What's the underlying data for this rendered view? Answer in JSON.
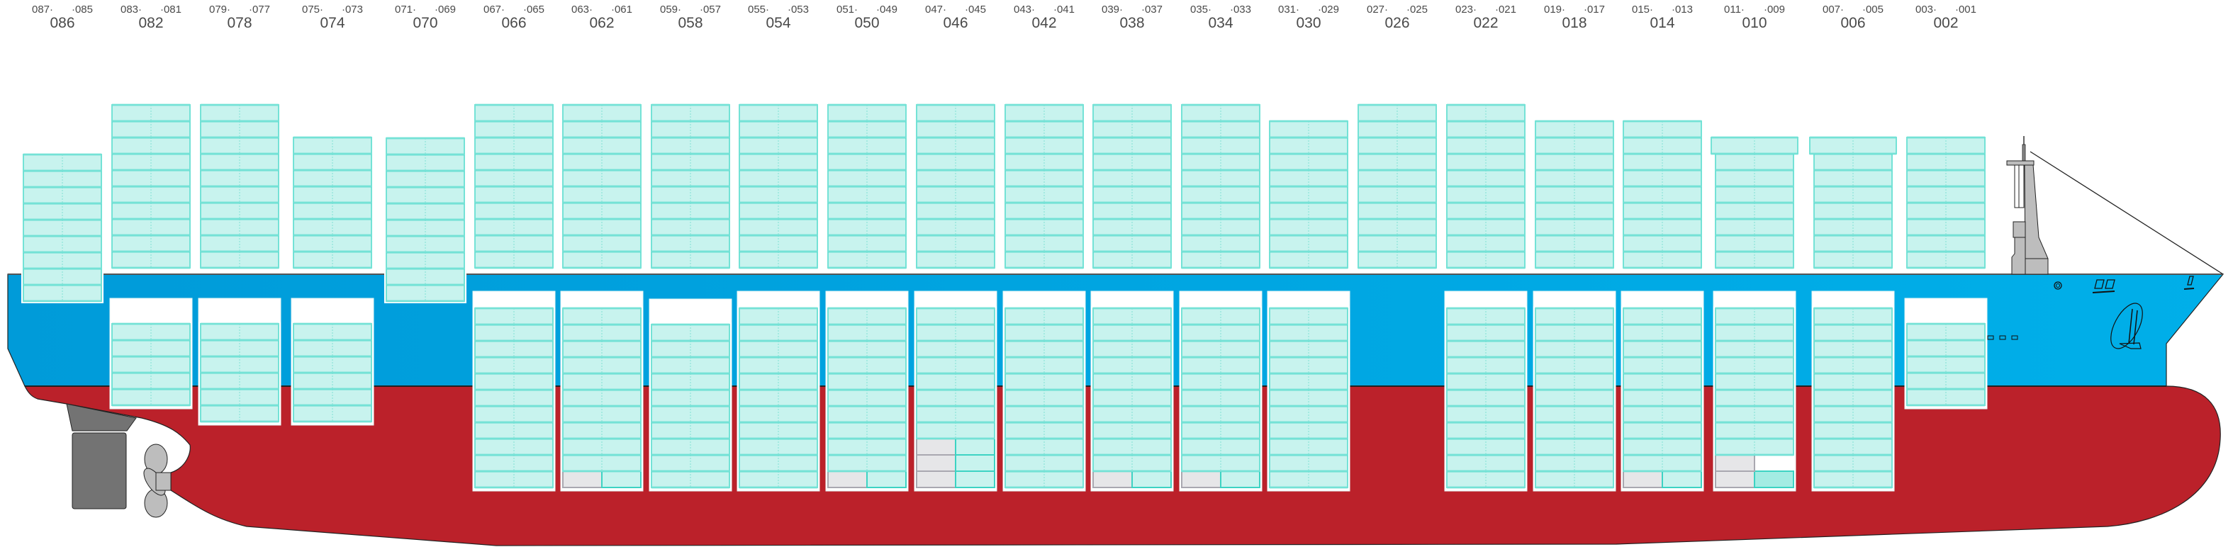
{
  "colors": {
    "container_fill": "#c8f3ee",
    "container_line": "#3dd3c3",
    "container_border": "#74e2d6",
    "empty_slot_fill": "#e6e6e8",
    "empty_slot_line": "#a9a8b0",
    "highlight_slot_fill": "#a3ece3",
    "hull_blue": "#00a7e2",
    "hull_red": "#bb212a",
    "superstructure_gray": "#bdbdbd",
    "rudder_gray": "#737373",
    "label_text": "#4a4a4a"
  },
  "bays": [
    {
      "bay": "086",
      "left_label": "087·",
      "right_label": "·085",
      "deck": {
        "tiers": 9
      },
      "hold": null
    },
    {
      "bay": "082",
      "left_label": "083·",
      "right_label": "·081",
      "deck": {
        "tiers": 10
      },
      "hold": {
        "tiers": 5
      }
    },
    {
      "bay": "078",
      "left_label": "079·",
      "right_label": "·077",
      "deck": {
        "tiers": 10
      },
      "hold": {
        "tiers": 6
      }
    },
    {
      "bay": "074",
      "left_label": "075·",
      "right_label": "·073",
      "deck": {
        "tiers": 8
      },
      "hold": {
        "tiers": 6
      }
    },
    {
      "bay": "070",
      "left_label": "071·",
      "right_label": "·069",
      "deck": {
        "tiers": 10
      },
      "hold": null
    },
    {
      "bay": "066",
      "left_label": "067·",
      "right_label": "·065",
      "deck": {
        "tiers": 10
      },
      "hold": {
        "tiers": 11
      }
    },
    {
      "bay": "062",
      "left_label": "063·",
      "right_label": "·061",
      "deck": {
        "tiers": 10
      },
      "hold": {
        "tiers": 11,
        "empty": [
          [
            0,
            0
          ]
        ]
      }
    },
    {
      "bay": "058",
      "left_label": "059·",
      "right_label": "·057",
      "deck": {
        "tiers": 10
      },
      "hold": {
        "tiers": 10
      }
    },
    {
      "bay": "054",
      "left_label": "055·",
      "right_label": "·053",
      "deck": {
        "tiers": 10
      },
      "hold": {
        "tiers": 11
      }
    },
    {
      "bay": "050",
      "left_label": "051·",
      "right_label": "·049",
      "deck": {
        "tiers": 10
      },
      "hold": {
        "tiers": 11,
        "empty": [
          [
            0,
            0
          ]
        ]
      }
    },
    {
      "bay": "046",
      "left_label": "047·",
      "right_label": "·045",
      "deck": {
        "tiers": 10
      },
      "hold": {
        "tiers": 11,
        "empty": [
          [
            0,
            0
          ],
          [
            0,
            1
          ],
          [
            0,
            2
          ]
        ]
      }
    },
    {
      "bay": "042",
      "left_label": "043·",
      "right_label": "·041",
      "deck": {
        "tiers": 10
      },
      "hold": {
        "tiers": 11
      }
    },
    {
      "bay": "038",
      "left_label": "039·",
      "right_label": "·037",
      "deck": {
        "tiers": 10
      },
      "hold": {
        "tiers": 11,
        "empty": [
          [
            0,
            0
          ]
        ]
      }
    },
    {
      "bay": "034",
      "left_label": "035·",
      "right_label": "·033",
      "deck": {
        "tiers": 10
      },
      "hold": {
        "tiers": 11,
        "empty": [
          [
            0,
            0
          ]
        ]
      }
    },
    {
      "bay": "030",
      "left_label": "031·",
      "right_label": "·029",
      "deck": {
        "tiers": 9
      },
      "hold": {
        "tiers": 11
      }
    },
    {
      "bay": "026",
      "left_label": "027·",
      "right_label": "·025",
      "deck": {
        "tiers": 10
      },
      "hold": null
    },
    {
      "bay": "022",
      "left_label": "023·",
      "right_label": "·021",
      "deck": {
        "tiers": 10
      },
      "hold": {
        "tiers": 11
      }
    },
    {
      "bay": "018",
      "left_label": "019·",
      "right_label": "·017",
      "deck": {
        "tiers": 9
      },
      "hold": {
        "tiers": 11
      }
    },
    {
      "bay": "014",
      "left_label": "015·",
      "right_label": "·013",
      "deck": {
        "tiers": 9
      },
      "hold": {
        "tiers": 11,
        "empty": [
          [
            0,
            0
          ]
        ]
      }
    },
    {
      "bay": "010",
      "left_label": "011·",
      "right_label": "·009",
      "deck": {
        "tiers": 8,
        "wide_top": true
      },
      "hold": {
        "tiers": 11,
        "empty": [
          [
            0,
            0
          ],
          [
            0,
            1
          ]
        ],
        "missing": [
          [
            1,
            1
          ]
        ],
        "highlight": [
          [
            1,
            0
          ]
        ]
      }
    },
    {
      "bay": "006",
      "left_label": "007·",
      "right_label": "·005",
      "deck": {
        "tiers": 8,
        "wide_top": true
      },
      "hold": {
        "tiers": 11
      }
    },
    {
      "bay": "002",
      "left_label": "003·",
      "right_label": "·001",
      "deck": {
        "tiers": 8
      },
      "hold": {
        "tiers": 5
      }
    }
  ]
}
